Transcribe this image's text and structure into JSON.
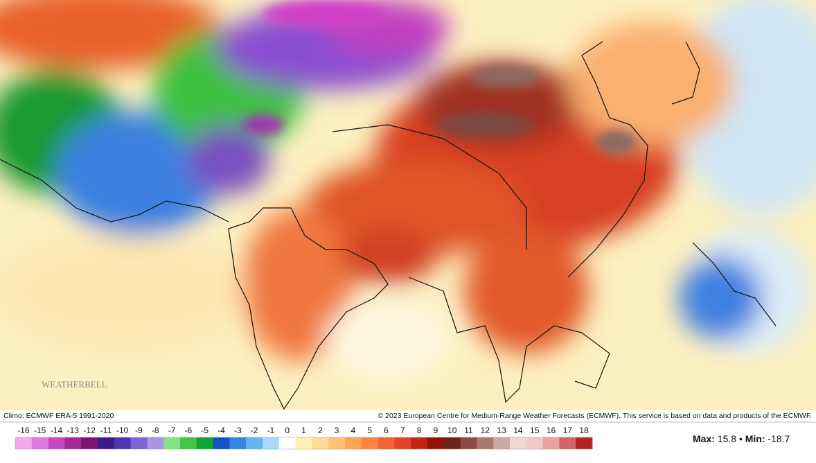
{
  "map": {
    "logo": "WEATHERBELL",
    "climo": "Climo: ECMWF ERA-5 1991-2020",
    "copyright": "© 2023 European Centre for Medium-Range Weather Forecasts (ECMWF). This service is based on data and products of the ECMWF."
  },
  "colorbar": {
    "ticks": [
      -16,
      -15,
      -14,
      -13,
      -12,
      -11,
      -10,
      -9,
      -8,
      -7,
      -6,
      -5,
      -4,
      -3,
      -2,
      -1,
      0,
      1,
      2,
      3,
      4,
      5,
      6,
      7,
      8,
      9,
      10,
      11,
      12,
      13,
      14,
      15,
      16,
      17,
      18
    ],
    "colors": [
      "#f2a8ec",
      "#e27ae0",
      "#c848c4",
      "#a42896",
      "#7c1474",
      "#3c1c86",
      "#4c34b4",
      "#7c64d4",
      "#aa94e4",
      "#86e086",
      "#46c446",
      "#12a434",
      "#1452c4",
      "#3484e2",
      "#64b4f2",
      "#a6daf8",
      "#ffffff",
      "#fff2b4",
      "#ffda94",
      "#ffc274",
      "#ffa454",
      "#ff8444",
      "#f26434",
      "#e24424",
      "#c22414",
      "#921408",
      "#6c2414",
      "#8c4c44",
      "#aa7a72",
      "#caaaa2",
      "#eadad2",
      "#f2caca",
      "#eaa2a2",
      "#d26464",
      "#b22424"
    ]
  },
  "stats": {
    "max_label": "Max:",
    "max": 15.8,
    "separator": "•",
    "min_label": "Min:",
    "min": -18.7
  }
}
